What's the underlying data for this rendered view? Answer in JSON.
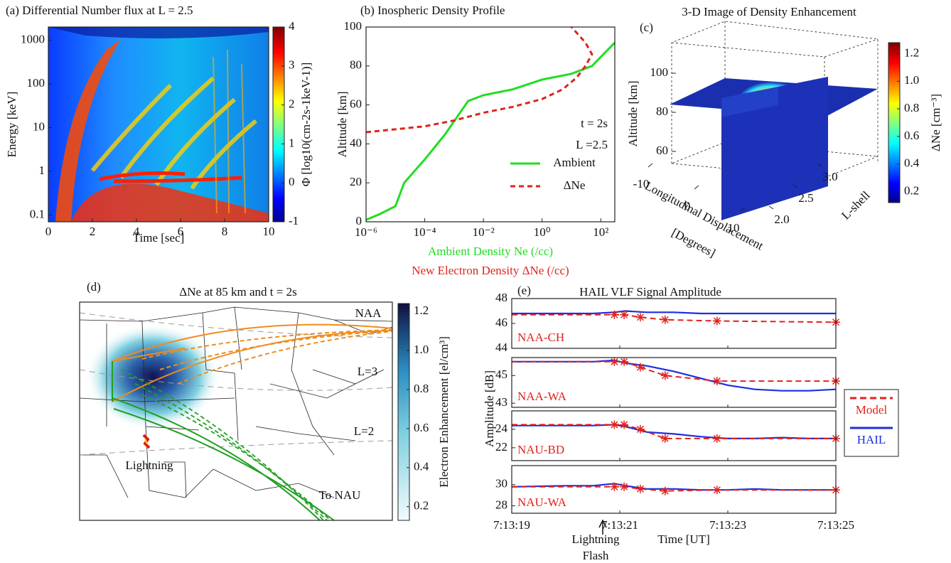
{
  "chart_data": [
    {
      "type": "heatmap",
      "title": "(a) Differential Number flux at L = 2.5",
      "xlabel": "Time [sec]",
      "ylabel": "Energy [keV]",
      "xlim": [
        0,
        10
      ],
      "xticks": [
        0,
        2,
        4,
        6,
        8,
        10
      ],
      "ylim": [
        0.07,
        2000
      ],
      "ylog": true,
      "yticks": [
        0.1,
        1,
        10,
        100,
        1000
      ],
      "colorbar_label": "Φ [log10(cm-2s-1keV-1)]",
      "clim": [
        -1,
        4
      ],
      "cticks": [
        -1,
        0,
        1,
        2,
        3,
        4
      ]
    },
    {
      "type": "line",
      "title": "(b) Inospheric Density Profile",
      "xlabel": [
        "Ambient Density Ne (/cc)",
        "New Electron Density ΔNe (/cc)"
      ],
      "ylabel": "Altitude [km]",
      "xlim": [
        1e-06,
        300
      ],
      "xlog": true,
      "xticks": [
        {
          "value": 1e-06,
          "label": "10⁻⁶"
        },
        {
          "value": 0.0001,
          "label": "10⁻⁴"
        },
        {
          "value": 0.01,
          "label": "10⁻²"
        },
        {
          "value": 1,
          "label": "10⁰"
        },
        {
          "value": 100,
          "label": "10²"
        }
      ],
      "ylim": [
        0,
        100
      ],
      "yticks": [
        0,
        20,
        40,
        60,
        80,
        100
      ],
      "annotations": [
        "t = 2s",
        "L =2.5"
      ],
      "series": [
        {
          "name": "Ambient",
          "color": "#22dd22",
          "dash": false,
          "x": [
            1e-06,
            3e-06,
            1e-05,
            2e-05,
            0.0001,
            0.0005,
            0.003,
            0.01,
            0.1,
            1,
            10,
            50,
            300
          ],
          "values": [
            1,
            4,
            8,
            20,
            32,
            45,
            62,
            65,
            68,
            73,
            76,
            80,
            92
          ]
        },
        {
          "name": "ΔNe",
          "color": "#e0231c",
          "dash": true,
          "x": [
            1e-06,
            0.0001,
            0.001,
            0.01,
            0.1,
            1,
            5,
            15,
            30,
            50,
            30,
            10
          ],
          "values": [
            46,
            49,
            52,
            56,
            59,
            63,
            68,
            74,
            80,
            86,
            92,
            100
          ]
        }
      ]
    },
    {
      "type": "surface3d",
      "title": "3-D Image of Density Enhancement",
      "label": "(c)",
      "zlabel": "Altitude [km]",
      "zlim": [
        60,
        100
      ],
      "zticks": [
        60,
        80,
        100
      ],
      "xlabel": [
        "Longitudinal Displacement",
        "[Degrees]"
      ],
      "xlim": [
        -10,
        10
      ],
      "xticks": [
        -10,
        0,
        10
      ],
      "ylabel": "L-shell",
      "ylim": [
        2,
        3
      ],
      "yticks": [
        {
          "value": 2,
          "label": "2.0"
        },
        2.5,
        {
          "value": 3,
          "label": "3.0"
        }
      ],
      "colorbar_label": "ΔNe [cm⁻³]",
      "clim": [
        0.12,
        1.28
      ],
      "cticks": [
        0.2,
        0.4,
        0.6,
        0.8,
        {
          "value": 1,
          "label": "1.0"
        },
        1.2
      ]
    },
    {
      "type": "map",
      "label": "(d)",
      "title": "ΔNe at 85 km and t = 2s",
      "annotations": [
        "NAA",
        "L=3",
        "L=2",
        "Lightning",
        "To NAU"
      ],
      "colorbar_label": "Electron Enhancement [el/cm³]",
      "clim": [
        0.13,
        1.24
      ],
      "cticks": [
        0.2,
        0.4,
        0.6,
        0.8,
        {
          "value": 1,
          "label": "1.0"
        },
        1.2
      ]
    },
    {
      "type": "multi-line",
      "label": "(e)",
      "title": "HAIL VLF Signal Amplitude",
      "xlabel": "Time [UT]",
      "ylabel": "Amplitude [dB]",
      "annotation": [
        "Lightning",
        "Flash"
      ],
      "xlim": [
        19,
        25
      ],
      "xticks": [
        {
          "value": 19,
          "label": "7:13:19"
        },
        {
          "value": 21,
          "label": "7:13:21"
        },
        {
          "value": 23,
          "label": "7:13:23"
        },
        {
          "value": 25,
          "label": "7:13:25"
        }
      ],
      "legend": [
        {
          "name": "Model",
          "color": "#e0231c"
        },
        {
          "name": "HAIL",
          "color": "#1c2ee0"
        }
      ],
      "panels": [
        {
          "name": "NAA-CH",
          "ylim": [
            44,
            48
          ],
          "yticks": [
            44,
            46,
            48
          ],
          "hail_x": [
            19,
            20,
            20.5,
            20.9,
            21.1,
            21.5,
            22,
            22.5,
            23,
            23.5,
            24,
            24.5,
            25
          ],
          "hail": [
            46.8,
            46.8,
            46.8,
            46.9,
            47,
            46.9,
            46.9,
            46.8,
            46.8,
            46.8,
            46.8,
            46.8,
            46.8
          ],
          "model_x": [
            19,
            20.9,
            21.08,
            21.38,
            21.84,
            22.8,
            25
          ],
          "model": [
            46.7,
            46.7,
            46.7,
            46.5,
            46.3,
            46.2,
            46.1
          ]
        },
        {
          "name": "NAA-WA",
          "ylim": [
            42.7,
            46.3
          ],
          "yticks": [
            43,
            45
          ],
          "hail_x": [
            19,
            20,
            20.5,
            20.9,
            21.1,
            21.5,
            22,
            22.5,
            23,
            23.5,
            24,
            24.5,
            25
          ],
          "hail": [
            46,
            46,
            46,
            46.1,
            45.9,
            45.7,
            45.3,
            44.8,
            44.3,
            44,
            43.9,
            43.9,
            44
          ],
          "model_x": [
            19,
            20.9,
            21.08,
            21.38,
            21.84,
            22.8,
            25
          ],
          "model": [
            46,
            46,
            46,
            45.6,
            45,
            44.6,
            44.6
          ]
        },
        {
          "name": "NAU-BD",
          "ylim": [
            20.6,
            26
          ],
          "yticks": [
            22,
            24
          ],
          "hail_x": [
            19,
            20,
            20.5,
            20.9,
            21.1,
            21.5,
            22,
            22.5,
            23,
            23.5,
            24,
            24.5,
            25
          ],
          "hail": [
            24.4,
            24.4,
            24.4,
            24.5,
            24.3,
            23.7,
            23.5,
            23.2,
            23,
            23,
            23.1,
            23,
            23
          ],
          "model_x": [
            19,
            20.9,
            21.08,
            21.38,
            21.84,
            22.8,
            25
          ],
          "model": [
            24.5,
            24.5,
            24.5,
            24,
            23,
            23,
            23
          ]
        },
        {
          "name": "NAU-WA",
          "ylim": [
            27.3,
            31.8
          ],
          "yticks": [
            28,
            30
          ],
          "hail_x": [
            19,
            20,
            20.5,
            20.9,
            21.1,
            21.5,
            22,
            22.5,
            23,
            23.5,
            24,
            24.5,
            25
          ],
          "hail": [
            29.8,
            29.9,
            29.9,
            30.1,
            29.9,
            29.6,
            29.6,
            29.5,
            29.5,
            29.6,
            29.5,
            29.5,
            29.5
          ],
          "model_x": [
            19,
            20.9,
            21.08,
            21.38,
            21.84,
            22.8,
            25
          ],
          "model": [
            29.8,
            29.8,
            29.8,
            29.6,
            29.4,
            29.5,
            29.5
          ]
        }
      ]
    }
  ]
}
